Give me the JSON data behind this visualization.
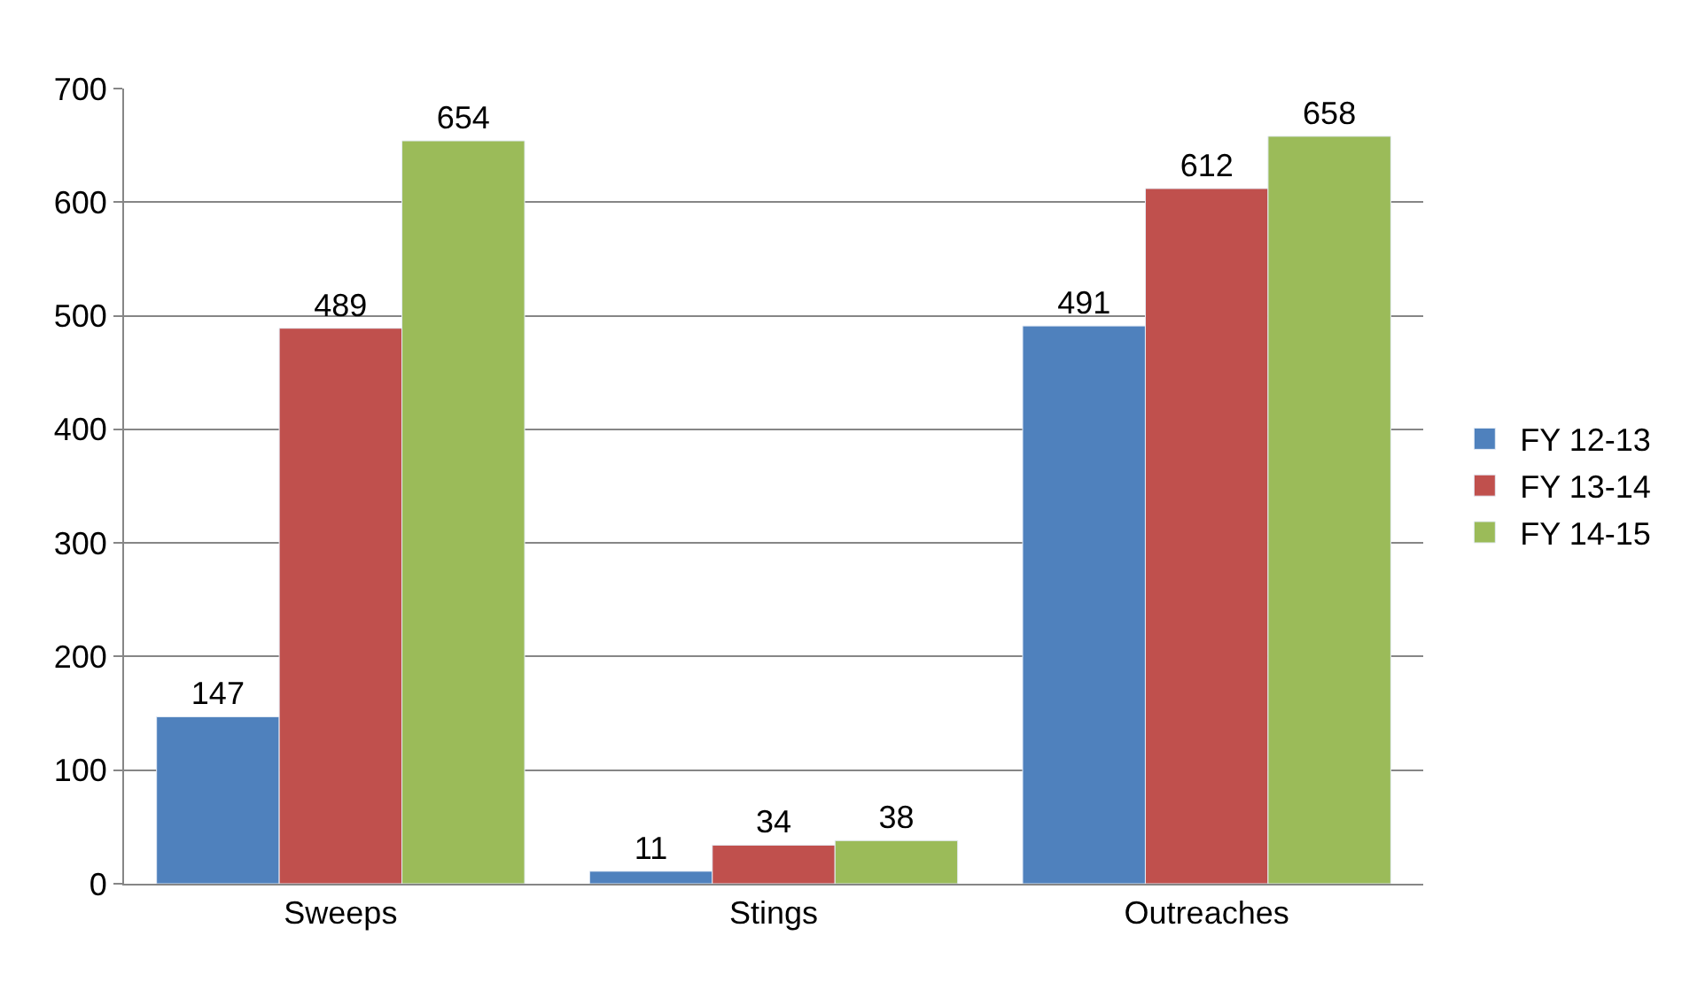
{
  "chart_data": {
    "type": "bar",
    "categories": [
      "Sweeps",
      "Stings",
      "Outreaches"
    ],
    "series": [
      {
        "name": "FY 12-13",
        "color": "#4f81bd",
        "values": [
          147,
          11,
          491
        ]
      },
      {
        "name": "FY 13-14",
        "color": "#c0504d",
        "values": [
          489,
          34,
          612
        ]
      },
      {
        "name": "FY 14-15",
        "color": "#9bbb59",
        "values": [
          654,
          38,
          658
        ]
      }
    ],
    "ylim": [
      0,
      700
    ],
    "yticks": [
      0,
      100,
      200,
      300,
      400,
      500,
      600,
      700
    ],
    "grid": "y",
    "legend": "right",
    "data_labels": true
  }
}
